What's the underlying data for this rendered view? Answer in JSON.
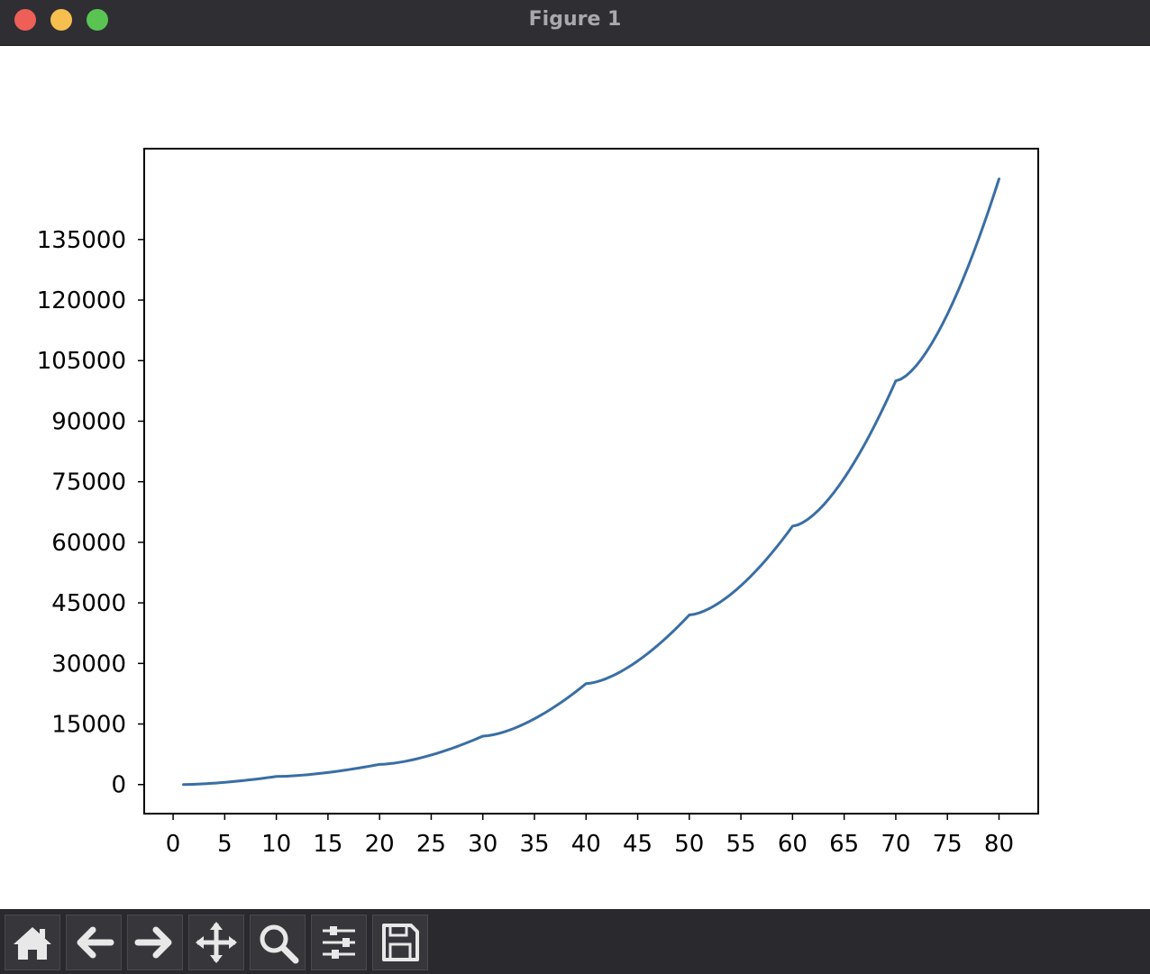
{
  "window": {
    "title": "Figure 1"
  },
  "toolbar": {
    "buttons": [
      {
        "name": "home-button",
        "icon": "home-icon"
      },
      {
        "name": "back-button",
        "icon": "arrow-left-icon"
      },
      {
        "name": "forward-button",
        "icon": "arrow-right-icon"
      },
      {
        "name": "pan-button",
        "icon": "move-icon"
      },
      {
        "name": "zoom-button",
        "icon": "magnifier-icon"
      },
      {
        "name": "configure-subplots-button",
        "icon": "sliders-icon"
      },
      {
        "name": "save-button",
        "icon": "floppy-disk-icon"
      }
    ]
  },
  "chart_data": {
    "type": "line",
    "title": "",
    "xlabel": "",
    "ylabel": "",
    "line_color": "#3a6ea5",
    "xticks": [
      "0",
      "5",
      "10",
      "15",
      "20",
      "25",
      "30",
      "35",
      "40",
      "45",
      "50",
      "55",
      "60",
      "65",
      "70",
      "75",
      "80"
    ],
    "yticks": [
      "0",
      "15000",
      "30000",
      "45000",
      "60000",
      "75000",
      "90000",
      "105000",
      "120000",
      "135000"
    ],
    "xlim": [
      -2.8,
      83.8
    ],
    "ylim": [
      -7200,
      157500
    ],
    "grid": false,
    "legend": "none",
    "x": [
      1,
      10,
      20,
      30,
      40,
      50,
      60,
      70,
      80
    ],
    "y": [
      0,
      2000,
      5000,
      12000,
      25000,
      42000,
      64000,
      100000,
      150000
    ]
  }
}
